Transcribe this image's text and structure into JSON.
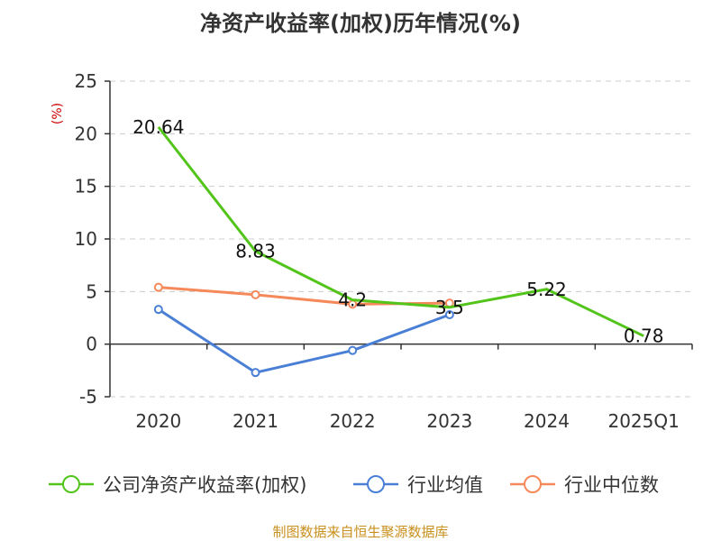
{
  "chart_data": {
    "type": "line",
    "title": "净资产收益率(加权)历年情况(%)",
    "unit": "(%)",
    "categories": [
      "2020",
      "2021",
      "2022",
      "2023",
      "2024",
      "2025Q1"
    ],
    "ylim": [
      -5,
      25
    ],
    "yticks": [
      -5,
      0,
      5,
      10,
      15,
      20,
      25
    ],
    "grid": true,
    "legend_position": "bottom",
    "series": [
      {
        "name": "公司净资产收益率(加权)",
        "color": "#52c41a",
        "values": [
          20.64,
          8.83,
          4.2,
          3.5,
          5.22,
          0.78
        ],
        "labels": [
          "20.64",
          "8.83",
          "4.2",
          "3.5",
          "5.22",
          "0.78"
        ],
        "markers": false
      },
      {
        "name": "行业均值",
        "color": "#4a7fd6",
        "values": [
          3.3,
          -2.7,
          -0.6,
          2.8,
          null,
          null
        ],
        "markers": true
      },
      {
        "name": "行业中位数",
        "color": "#f5895a",
        "values": [
          5.4,
          4.7,
          3.8,
          3.9,
          null,
          null
        ],
        "markers": true
      }
    ]
  },
  "footer": {
    "source": "制图数据来自恒生聚源数据库",
    "source_color": "#c8901e"
  },
  "unit_color": "#cc0000"
}
